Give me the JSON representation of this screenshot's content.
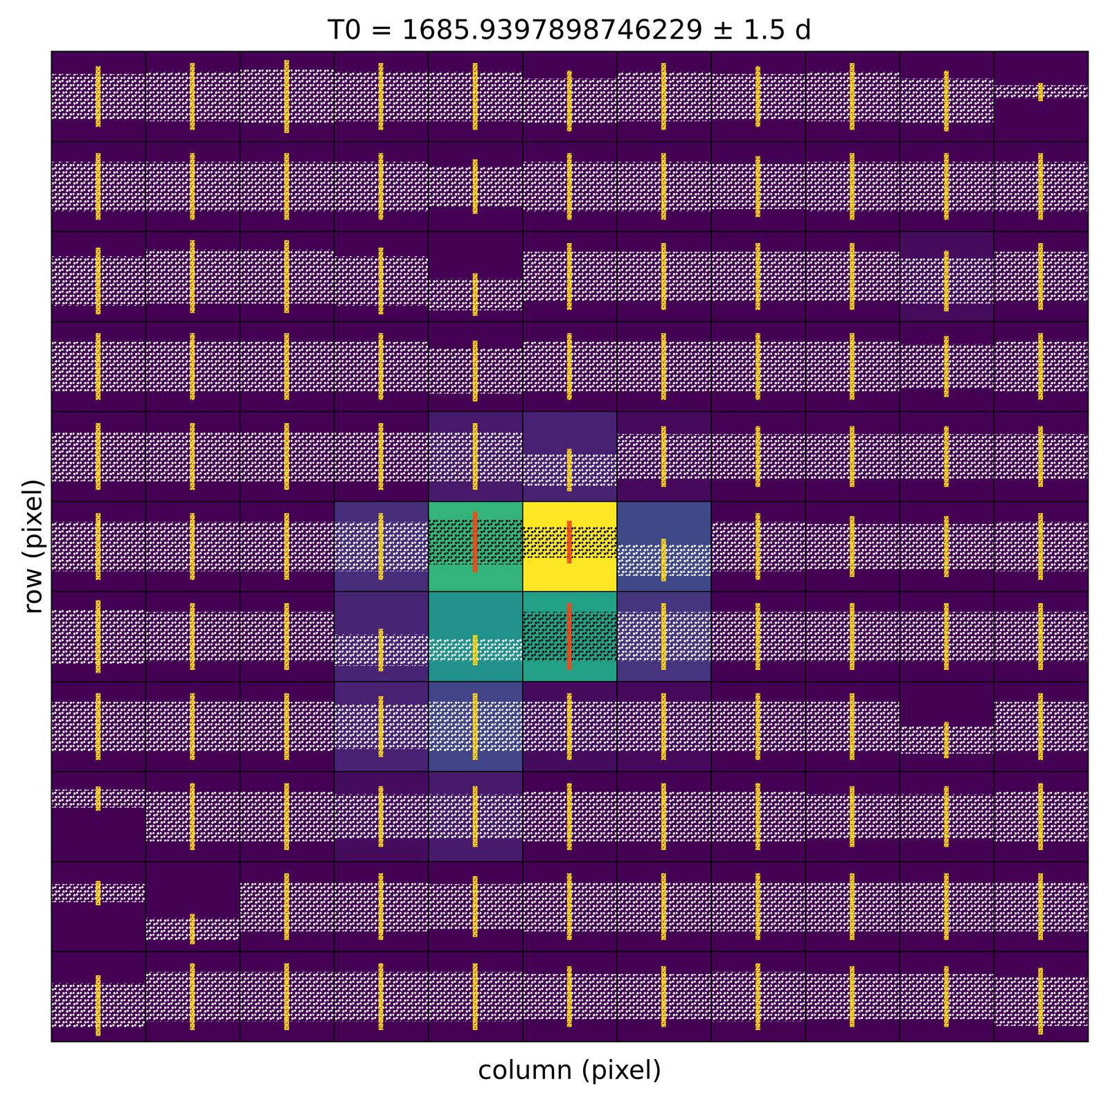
{
  "chart_data": {
    "type": "heatmap",
    "title": "T0 = 1685.9397898746229 ± 1.5 d",
    "x_label": "column (pixel)",
    "y_label": "row (pixel)",
    "tick_labels": false,
    "clim": [
      0,
      1
    ],
    "cells": [
      [
        0,
        0,
        0,
        0,
        0,
        0,
        0,
        0,
        0,
        0,
        0
      ],
      [
        0,
        0,
        0,
        0,
        0,
        0,
        0,
        0,
        0,
        0,
        0
      ],
      [
        0,
        0,
        0,
        0,
        0,
        0,
        0,
        0,
        0,
        0.03,
        0
      ],
      [
        0,
        0,
        0,
        0,
        0,
        0,
        0,
        0,
        0,
        0,
        0
      ],
      [
        0,
        0,
        0,
        0,
        0.07,
        0.09,
        0.02,
        0,
        0,
        0,
        0
      ],
      [
        0,
        0,
        0,
        0.13,
        0.65,
        1,
        0.22,
        0,
        0,
        0,
        0
      ],
      [
        0,
        0,
        0,
        0.1,
        0.5,
        0.57,
        0.15,
        0,
        0,
        0,
        0
      ],
      [
        0,
        0,
        0,
        0.09,
        0.2,
        0.03,
        0.02,
        0,
        0,
        0,
        0
      ],
      [
        0,
        0,
        0,
        0.03,
        0.07,
        0,
        0,
        0,
        0,
        0,
        0
      ],
      [
        0,
        0,
        0,
        0,
        0,
        0,
        0,
        0,
        0,
        0,
        0
      ],
      [
        0,
        0,
        0,
        0,
        0,
        0,
        0,
        0,
        0,
        0,
        0
      ]
    ],
    "band_levels": [
      [
        0.5,
        0.5,
        0.5,
        0.5,
        0.5,
        0.45,
        0.5,
        0.5,
        0.5,
        0.45,
        0.55
      ],
      [
        0.5,
        0.5,
        0.5,
        0.5,
        0.5,
        0.5,
        0.5,
        0.5,
        0.5,
        0.5,
        0.5
      ],
      [
        0.45,
        0.5,
        0.5,
        0.45,
        0.3,
        0.5,
        0.5,
        0.5,
        0.5,
        0.45,
        0.5
      ],
      [
        0.5,
        0.5,
        0.5,
        0.5,
        0.45,
        0.5,
        0.5,
        0.5,
        0.5,
        0.5,
        0.5
      ],
      [
        0.5,
        0.5,
        0.5,
        0.5,
        0.5,
        0.35,
        0.5,
        0.5,
        0.5,
        0.5,
        0.5
      ],
      [
        0.5,
        0.5,
        0.5,
        0.5,
        0.55,
        0.55,
        0.35,
        0.5,
        0.5,
        0.5,
        0.5
      ],
      [
        0.5,
        0.5,
        0.5,
        0.35,
        0.35,
        0.5,
        0.5,
        0.5,
        0.5,
        0.5,
        0.5
      ],
      [
        0.5,
        0.5,
        0.5,
        0.5,
        0.5,
        0.5,
        0.5,
        0.5,
        0.5,
        0.35,
        0.5
      ],
      [
        0.7,
        0.5,
        0.5,
        0.5,
        0.5,
        0.5,
        0.5,
        0.5,
        0.5,
        0.5,
        0.5
      ],
      [
        0.65,
        0.25,
        0.5,
        0.5,
        0.5,
        0.5,
        0.5,
        0.5,
        0.5,
        0.5,
        0.5
      ],
      [
        0.4,
        0.5,
        0.5,
        0.5,
        0.5,
        0.5,
        0.5,
        0.5,
        0.5,
        0.5,
        0.45
      ]
    ],
    "band_spreads": [
      [
        0.5,
        0.55,
        0.6,
        0.55,
        0.55,
        0.5,
        0.55,
        0.5,
        0.55,
        0.5,
        0.15
      ],
      [
        0.55,
        0.55,
        0.55,
        0.55,
        0.45,
        0.55,
        0.55,
        0.5,
        0.55,
        0.55,
        0.55
      ],
      [
        0.55,
        0.6,
        0.6,
        0.55,
        0.35,
        0.55,
        0.55,
        0.55,
        0.55,
        0.5,
        0.55
      ],
      [
        0.55,
        0.55,
        0.55,
        0.55,
        0.5,
        0.55,
        0.55,
        0.55,
        0.55,
        0.5,
        0.55
      ],
      [
        0.55,
        0.55,
        0.55,
        0.55,
        0.55,
        0.35,
        0.5,
        0.5,
        0.5,
        0.5,
        0.5
      ],
      [
        0.55,
        0.55,
        0.55,
        0.55,
        0.5,
        0.35,
        0.35,
        0.55,
        0.5,
        0.5,
        0.55
      ],
      [
        0.6,
        0.55,
        0.55,
        0.35,
        0.25,
        0.55,
        0.55,
        0.55,
        0.55,
        0.55,
        0.55
      ],
      [
        0.55,
        0.55,
        0.55,
        0.5,
        0.55,
        0.55,
        0.55,
        0.55,
        0.55,
        0.3,
        0.55
      ],
      [
        0.2,
        0.55,
        0.55,
        0.5,
        0.5,
        0.55,
        0.55,
        0.55,
        0.5,
        0.5,
        0.55
      ],
      [
        0.2,
        0.25,
        0.55,
        0.55,
        0.5,
        0.55,
        0.55,
        0.55,
        0.55,
        0.55,
        0.55
      ],
      [
        0.5,
        0.55,
        0.55,
        0.55,
        0.55,
        0.5,
        0.5,
        0.55,
        0.5,
        0.5,
        0.55
      ]
    ],
    "aperture": [
      [
        5,
        4
      ],
      [
        5,
        5
      ],
      [
        6,
        5
      ]
    ]
  }
}
